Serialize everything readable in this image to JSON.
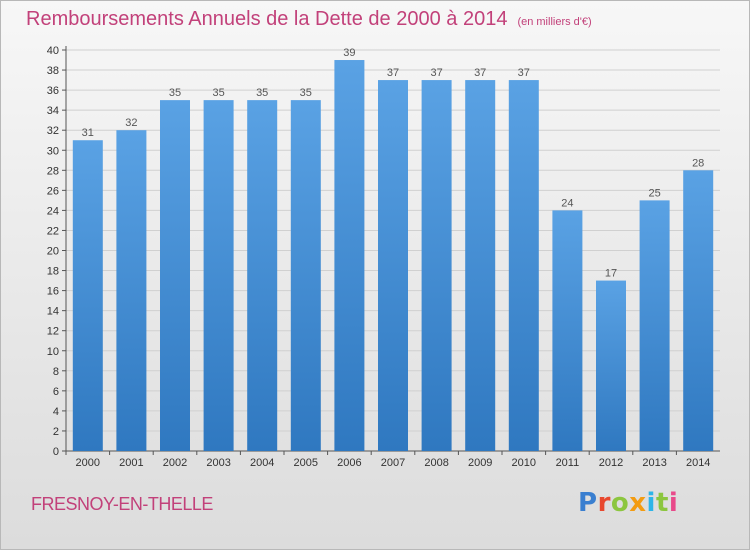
{
  "chart_data": {
    "type": "bar",
    "title": "Remboursements Annuels de la Dette de 2000 à 2014",
    "unit": "(en milliers d'€)",
    "categories": [
      "2000",
      "2001",
      "2002",
      "2003",
      "2004",
      "2005",
      "2006",
      "2007",
      "2008",
      "2009",
      "2010",
      "2011",
      "2012",
      "2013",
      "2014"
    ],
    "values": [
      31,
      32,
      35,
      35,
      35,
      35,
      39,
      37,
      37,
      37,
      37,
      24,
      17,
      25,
      28
    ],
    "ylim": [
      0,
      40
    ],
    "yticks": [
      0,
      2,
      4,
      6,
      8,
      10,
      12,
      14,
      16,
      18,
      20,
      22,
      24,
      26,
      28,
      30,
      32,
      34,
      36,
      38,
      40
    ],
    "grid": true,
    "bar_color": "#4a90d6"
  },
  "footer": {
    "city": "FRESNOY-EN-THELLE",
    "logo": "Proxiti"
  }
}
